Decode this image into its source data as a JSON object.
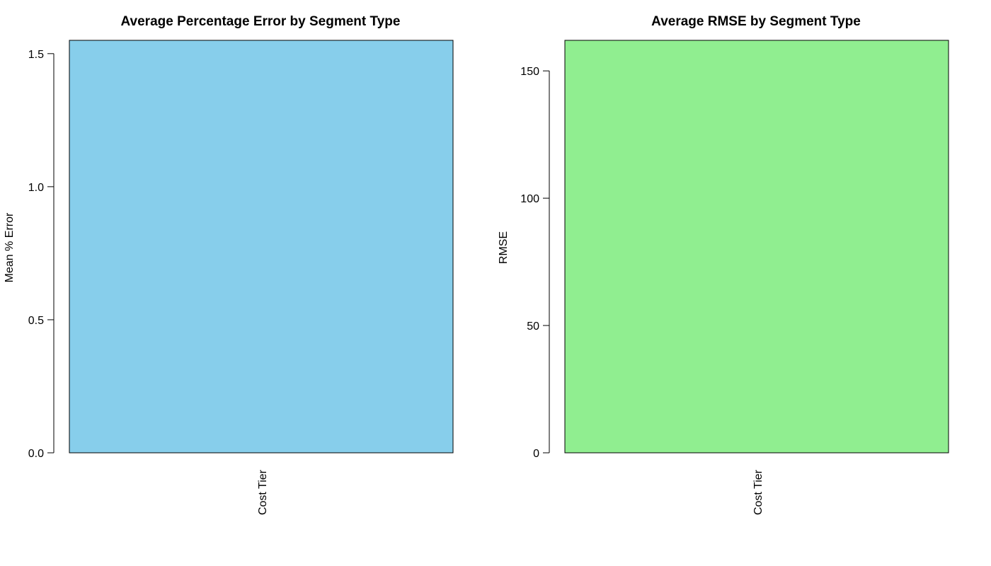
{
  "chart_data": [
    {
      "type": "bar",
      "title": "Average Percentage Error by Segment Type",
      "xlabel": "",
      "ylabel": "Mean % Error",
      "categories": [
        "Cost Tier"
      ],
      "values": [
        1.55
      ],
      "ylim": [
        0,
        1.55
      ],
      "yticks": [
        0.0,
        0.5,
        1.0,
        1.5
      ],
      "ytick_labels": [
        "0.0",
        "0.5",
        "1.0",
        "1.5"
      ],
      "bar_color": "#87CEEB",
      "grid": false
    },
    {
      "type": "bar",
      "title": "Average RMSE by Segment Type",
      "xlabel": "",
      "ylabel": "RMSE",
      "categories": [
        "Cost Tier"
      ],
      "values": [
        162
      ],
      "ylim": [
        0,
        162
      ],
      "yticks": [
        0,
        50,
        100,
        150
      ],
      "ytick_labels": [
        "0",
        "50",
        "100",
        "150"
      ],
      "bar_color": "#90EE90",
      "grid": false
    }
  ]
}
